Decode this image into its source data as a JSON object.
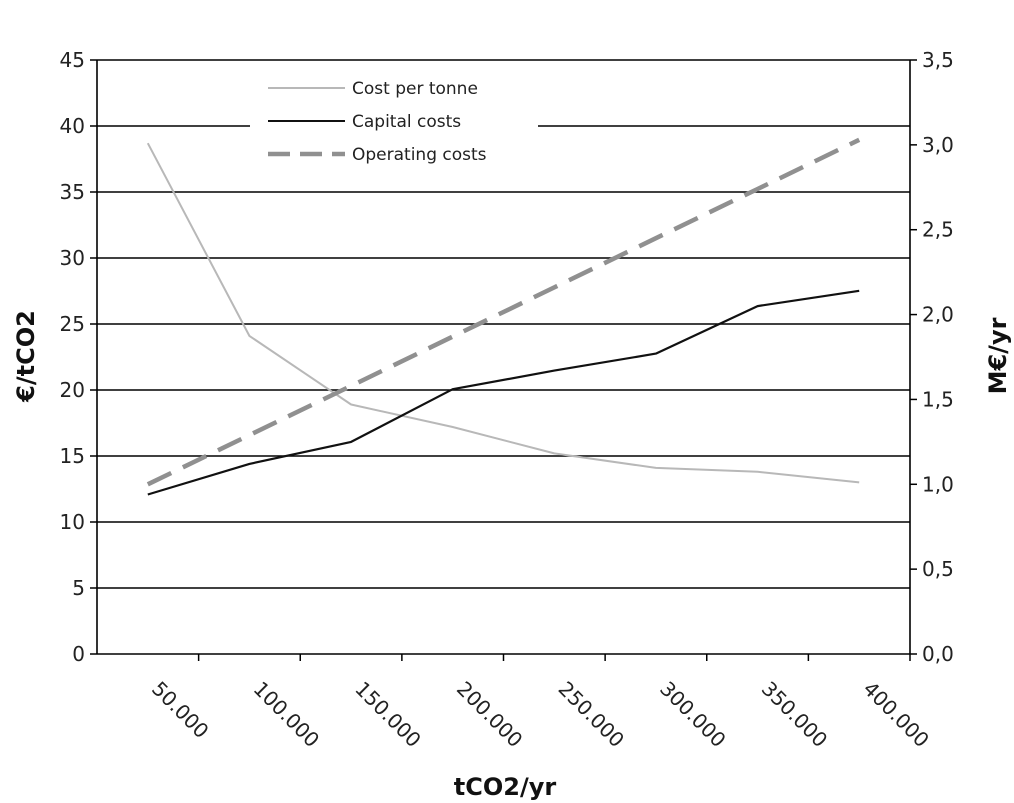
{
  "chart_data": {
    "type": "line",
    "x_ticks": [
      "50.000",
      "100.000",
      "150.000",
      "200.000",
      "250.000",
      "300.000",
      "350.000",
      "400.000"
    ],
    "xlabel": "tCO2/yr",
    "ylabel_left": "€/tCO2",
    "ylabel_right": "M€/yr",
    "ylim_left": [
      0,
      45
    ],
    "ylim_right": [
      0,
      3.5
    ],
    "y_ticks_left": [
      "0",
      "5",
      "10",
      "15",
      "20",
      "25",
      "30",
      "35",
      "40",
      "45"
    ],
    "y_ticks_right": [
      "0,0",
      "0,5",
      "1,0",
      "1,5",
      "2,0",
      "2,5",
      "3,0",
      "3,5"
    ],
    "grid": true,
    "legend_position": "top-left",
    "x": [
      25000,
      75000,
      125000,
      175000,
      225000,
      275000,
      325000,
      375000
    ],
    "series": [
      {
        "name": "Cost per tonne",
        "axis": "left",
        "color": "#b8b8b8",
        "style": "solid",
        "values": [
          38.7,
          24.1,
          18.9,
          17.2,
          15.2,
          14.1,
          13.8,
          13.0
        ]
      },
      {
        "name": "Capital costs",
        "axis": "right",
        "color": "#111111",
        "style": "solid",
        "values": [
          0.94,
          1.12,
          1.25,
          1.56,
          1.67,
          1.77,
          2.05,
          2.14
        ]
      },
      {
        "name": "Operating costs",
        "axis": "right",
        "color": "#909090",
        "style": "dashed",
        "values": [
          1.0,
          1.29,
          1.58,
          1.87,
          2.16,
          2.45,
          2.74,
          3.03
        ]
      }
    ]
  }
}
